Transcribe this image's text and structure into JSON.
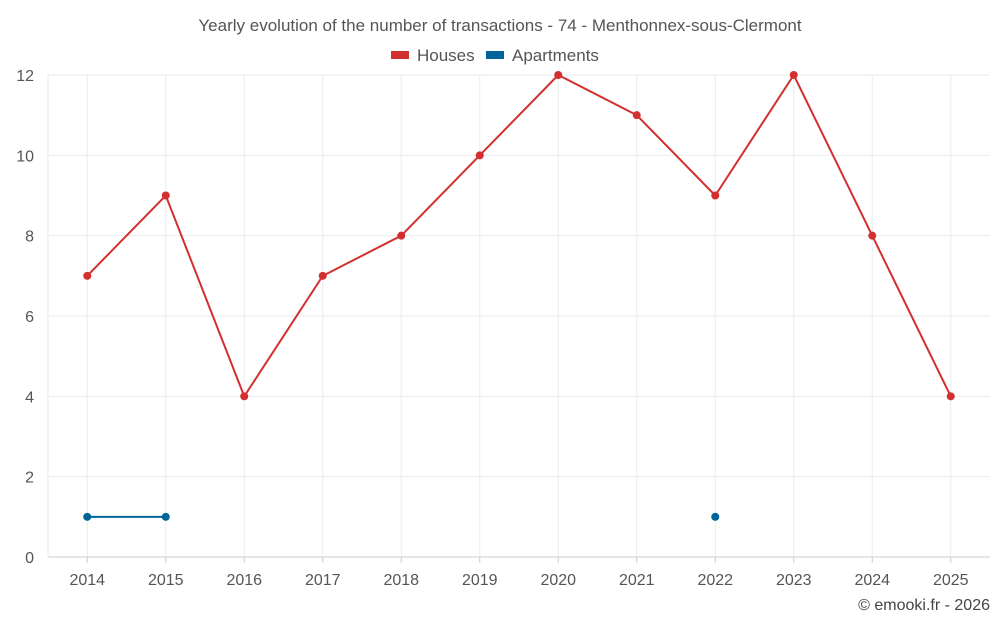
{
  "chart_data": {
    "type": "line",
    "title": "Yearly evolution of the number of transactions - 74 - Menthonnex-sous-Clermont",
    "xlabel": "",
    "ylabel": "",
    "x": [
      "2014",
      "2015",
      "2016",
      "2017",
      "2018",
      "2019",
      "2020",
      "2021",
      "2022",
      "2023",
      "2024",
      "2025"
    ],
    "ylim": [
      0,
      12
    ],
    "yticks": [
      0,
      2,
      4,
      6,
      8,
      10,
      12
    ],
    "grid": true,
    "legend_position": "top-center",
    "series": [
      {
        "name": "Houses",
        "color": "#d32f2f",
        "values": [
          7,
          9,
          4,
          7,
          8,
          10,
          12,
          11,
          9,
          12,
          8,
          4
        ]
      },
      {
        "name": "Apartments",
        "color": "#00639a",
        "values": [
          1,
          1,
          null,
          null,
          null,
          null,
          null,
          null,
          1,
          null,
          null,
          null
        ]
      }
    ]
  },
  "credit": "© emooki.fr - 2026"
}
